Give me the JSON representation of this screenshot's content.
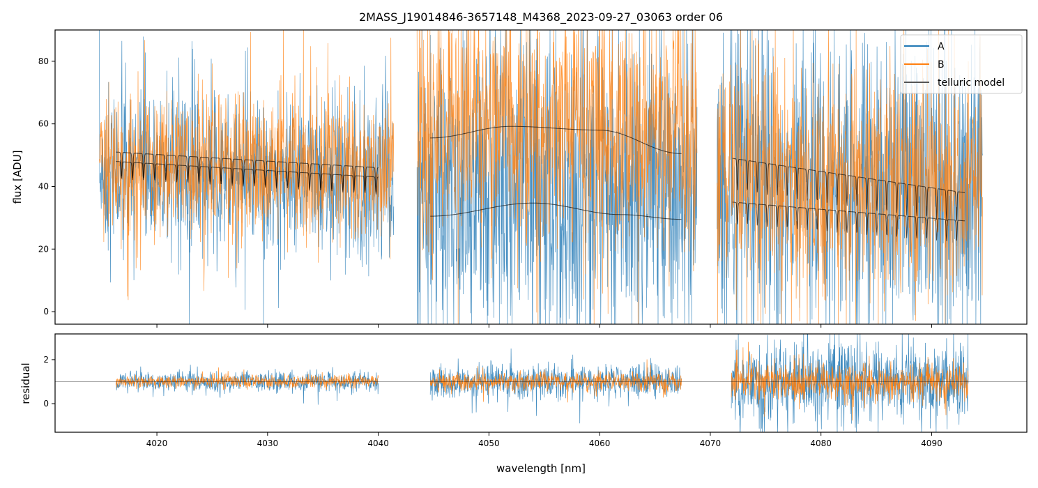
{
  "chart_data": {
    "type": "line",
    "title": "2MASS_J19014846-3657148_M4368_2023-09-27_03063  order 06",
    "xlabel": "wavelength [nm]",
    "xlim": [
      4010.8,
      4098.6
    ],
    "xticks": [
      4020,
      4030,
      4040,
      4050,
      4060,
      4070,
      4080,
      4090
    ],
    "colors": {
      "A": "#1f77b4",
      "B": "#ff7f0e",
      "telluric": "#000000"
    },
    "legend": {
      "placement": "top-right",
      "entries": [
        "A",
        "B",
        "telluric model"
      ]
    },
    "top_panel": {
      "ylabel": "flux [ADU]",
      "ylim": [
        -4,
        90
      ],
      "yticks": [
        0,
        20,
        40,
        60,
        80
      ],
      "segments": [
        {
          "x": [
            4014.8,
            4041.4
          ],
          "A": {
            "mean": 44,
            "std": 13
          },
          "B": {
            "mean": 46,
            "std": 11
          }
        },
        {
          "x": [
            4043.5,
            4068.8
          ],
          "A": {
            "mean": 40,
            "std": 24
          },
          "B": {
            "mean": 60,
            "std": 19
          }
        },
        {
          "x": [
            4070.6,
            4094.6
          ],
          "A": {
            "mean": 40,
            "std": 24
          },
          "B": {
            "mean": 42,
            "std": 18
          }
        }
      ],
      "telluric_model": [
        {
          "x": [
            4016.3,
            4040.0
          ],
          "upper": [
            51,
            46
          ],
          "lower": [
            48,
            43
          ],
          "line_spacing_nm": 1.0,
          "line_depth": 8
        },
        {
          "x": [
            4044.7,
            4067.4
          ],
          "upper_points": [
            [
              4044.7,
              55.5
            ],
            [
              4052,
              59.2
            ],
            [
              4060,
              58
            ],
            [
              4067.4,
              50.5
            ]
          ],
          "lower_points": [
            [
              4044.7,
              30.5
            ],
            [
              4054,
              34.7
            ],
            [
              4062,
              31
            ],
            [
              4067.4,
              29.5
            ]
          ]
        },
        {
          "x": [
            4072.0,
            4093.0
          ],
          "upper": [
            49,
            38
          ],
          "lower": [
            35,
            29
          ],
          "line_spacing_nm": 0.9,
          "line_depth": 10
        }
      ]
    },
    "bottom_panel": {
      "ylabel": "residual",
      "ylim": [
        -1.3,
        3.17
      ],
      "yticks": [
        0,
        2
      ],
      "reference_line": 1,
      "segments": [
        {
          "x": [
            4016.3,
            4040.0
          ],
          "A": {
            "mean": 1,
            "std": 0.22
          },
          "B": {
            "mean": 1,
            "std": 0.14
          }
        },
        {
          "x": [
            4044.7,
            4067.4
          ],
          "A": {
            "mean": 1,
            "std": 0.38
          },
          "B": {
            "mean": 1,
            "std": 0.2
          }
        },
        {
          "x": [
            4071.9,
            4093.3
          ],
          "A": {
            "mean": 1,
            "std": 0.9
          },
          "B": {
            "mean": 1,
            "std": 0.4
          }
        }
      ]
    }
  }
}
